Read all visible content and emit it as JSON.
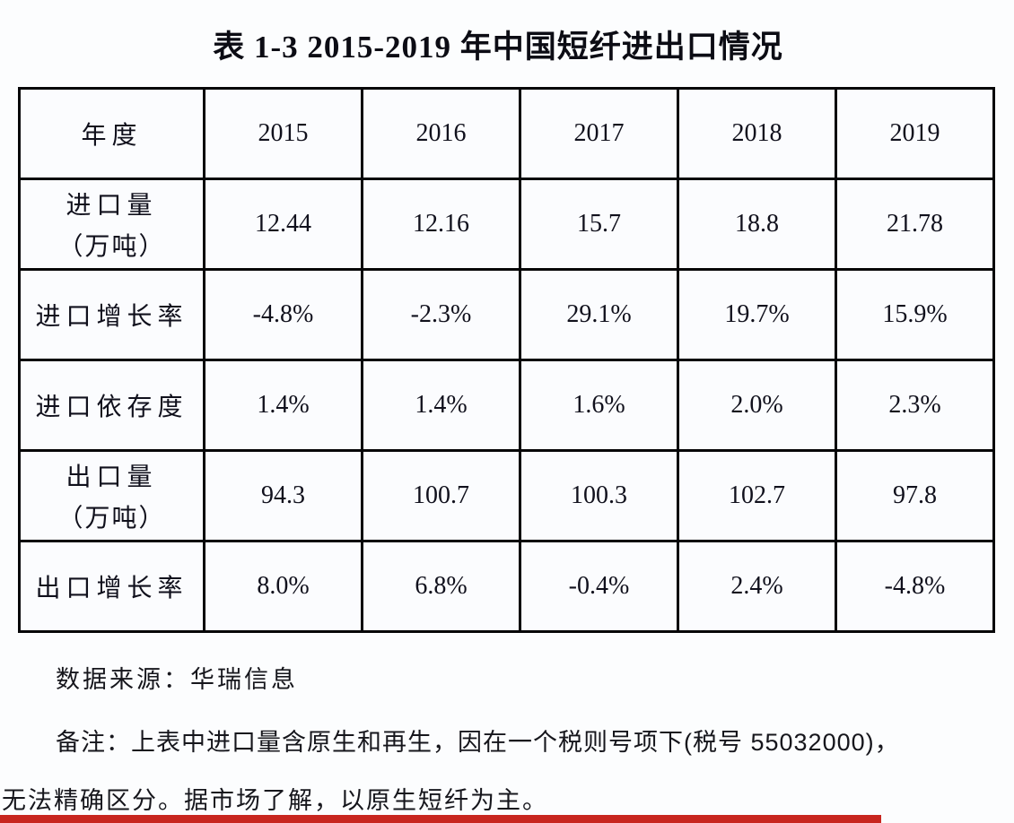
{
  "title": "表 1-3 2015-2019 年中国短纤进出口情况",
  "table": {
    "header": [
      "年度",
      "2015",
      "2016",
      "2017",
      "2018",
      "2019"
    ],
    "rows": [
      {
        "label": "进口量",
        "label2": "（万吨）",
        "values": [
          "12.44",
          "12.16",
          "15.7",
          "18.8",
          "21.78"
        ]
      },
      {
        "label": "进口增长率",
        "values": [
          "-4.8%",
          "-2.3%",
          "29.1%",
          "19.7%",
          "15.9%"
        ]
      },
      {
        "label": "进口依存度",
        "values": [
          "1.4%",
          "1.4%",
          "1.6%",
          "2.0%",
          "2.3%"
        ]
      },
      {
        "label": "出口量",
        "label2": "（万吨）",
        "values": [
          "94.3",
          "100.7",
          "100.3",
          "102.7",
          "97.8"
        ]
      },
      {
        "label": "出口增长率",
        "values": [
          "8.0%",
          "6.8%",
          "-0.4%",
          "2.4%",
          "-4.8%"
        ]
      }
    ]
  },
  "source_line": "数据来源：华瑞信息",
  "note_line1": "备注：上表中进口量含原生和再生，因在一个税则号项下(税号 55032000)，",
  "note_line2": "无法精确区分。据市场了解，以原生短纤为主。",
  "colors": {
    "accent_bar": "#c8261f",
    "border": "#060608",
    "text": "#0d0d12"
  },
  "chart_data": {
    "type": "table",
    "title": "表 1-3 2015-2019 年中国短纤进出口情况",
    "categories": [
      "2015",
      "2016",
      "2017",
      "2018",
      "2019"
    ],
    "series": [
      {
        "name": "进口量（万吨）",
        "values": [
          12.44,
          12.16,
          15.7,
          18.8,
          21.78
        ]
      },
      {
        "name": "进口增长率",
        "values": [
          "-4.8%",
          "-2.3%",
          "29.1%",
          "19.7%",
          "15.9%"
        ]
      },
      {
        "name": "进口依存度",
        "values": [
          "1.4%",
          "1.4%",
          "1.6%",
          "2.0%",
          "2.3%"
        ]
      },
      {
        "name": "出口量（万吨）",
        "values": [
          94.3,
          100.7,
          100.3,
          102.7,
          97.8
        ]
      },
      {
        "name": "出口增长率",
        "values": [
          "8.0%",
          "6.8%",
          "-0.4%",
          "2.4%",
          "-4.8%"
        ]
      }
    ]
  }
}
